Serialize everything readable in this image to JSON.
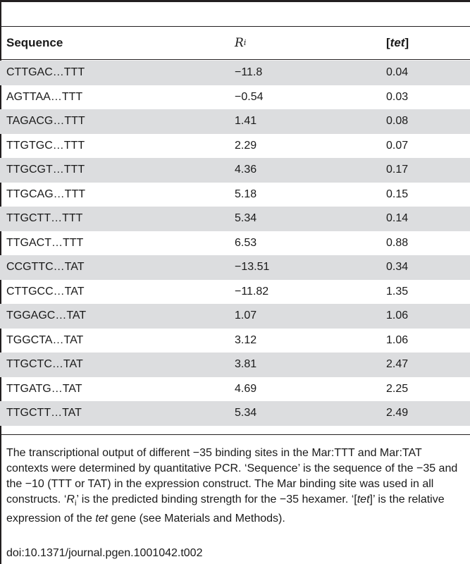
{
  "table": {
    "columns": {
      "sequence": "Sequence",
      "ri": "Ri",
      "tet": "[tet]"
    },
    "rows": [
      {
        "sequence": "CTTGAC…TTT",
        "ri": "−11.8",
        "tet": "0.04"
      },
      {
        "sequence": "AGTTAA…TTT",
        "ri": "−0.54",
        "tet": "0.03"
      },
      {
        "sequence": "TAGACG…TTT",
        "ri": "1.41",
        "tet": "0.08"
      },
      {
        "sequence": "TTGTGC…TTT",
        "ri": "2.29",
        "tet": "0.07"
      },
      {
        "sequence": "TTGCGT…TTT",
        "ri": "4.36",
        "tet": "0.17"
      },
      {
        "sequence": "TTGCAG…TTT",
        "ri": "5.18",
        "tet": "0.15"
      },
      {
        "sequence": "TTGCTT…TTT",
        "ri": "5.34",
        "tet": "0.14"
      },
      {
        "sequence": "TTGACT…TTT",
        "ri": "6.53",
        "tet": "0.88"
      },
      {
        "sequence": "CCGTTC…TAT",
        "ri": "−13.51",
        "tet": "0.34"
      },
      {
        "sequence": "CTTGCC…TAT",
        "ri": "−11.82",
        "tet": "1.35"
      },
      {
        "sequence": "TGGAGC…TAT",
        "ri": "1.07",
        "tet": "1.06"
      },
      {
        "sequence": "TGGCTA…TAT",
        "ri": "3.12",
        "tet": "1.06"
      },
      {
        "sequence": "TTGCTC…TAT",
        "ri": "3.81",
        "tet": "2.47"
      },
      {
        "sequence": "TTGATG…TAT",
        "ri": "4.69",
        "tet": "2.25"
      },
      {
        "sequence": "TTGCTT…TAT",
        "ri": "5.34",
        "tet": "2.49"
      }
    ]
  },
  "footnote": "The transcriptional output of different −35 binding sites in the Mar:TTT and Mar:TAT contexts were determined by quantitative PCR. ‘Sequence’ is the sequence of the −35 and the −10 (TTT or TAT) in the expression construct. The Mar binding site was used in all constructs. ‘Ri’ is the predicted binding strength for the −35 hexamer. ‘[tet]’ is the relative expression of the tet gene (see Materials and Methods).",
  "doi": "doi:10.1371/journal.pgen.1001042.t002"
}
